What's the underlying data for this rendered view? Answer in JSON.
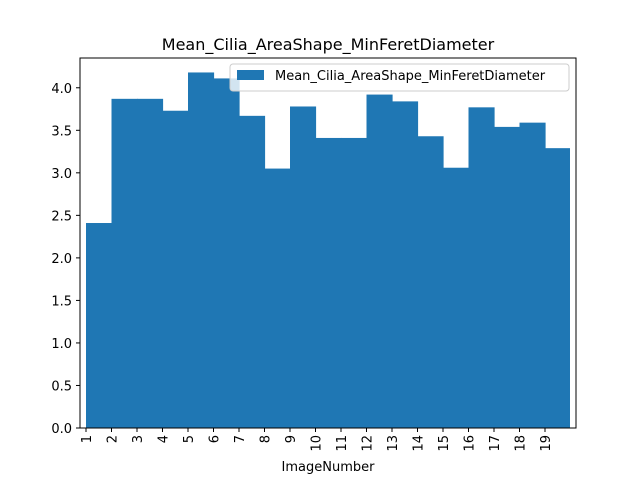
{
  "chart_data": {
    "type": "bar",
    "title": "Mean_Cilia_AreaShape_MinFeretDiameter",
    "xlabel": "ImageNumber",
    "ylabel": "",
    "categories": [
      "1",
      "2",
      "3",
      "4",
      "5",
      "6",
      "7",
      "8",
      "9",
      "10",
      "11",
      "12",
      "13",
      "14",
      "15",
      "16",
      "17",
      "18",
      "19"
    ],
    "series": [
      {
        "name": "Mean_Cilia_AreaShape_MinFeretDiameter",
        "values": [
          2.41,
          3.87,
          3.87,
          3.73,
          4.18,
          4.11,
          3.67,
          3.05,
          3.78,
          3.41,
          3.41,
          3.92,
          3.84,
          3.43,
          3.06,
          3.77,
          3.54,
          3.59,
          3.29
        ],
        "color": "#1f77b4"
      }
    ],
    "ylim": [
      0,
      4.35
    ],
    "yticks": [
      "0.0",
      "0.5",
      "1.0",
      "1.5",
      "2.0",
      "2.5",
      "3.0",
      "3.5",
      "4.0"
    ],
    "grid": false,
    "legend": "top-right"
  }
}
